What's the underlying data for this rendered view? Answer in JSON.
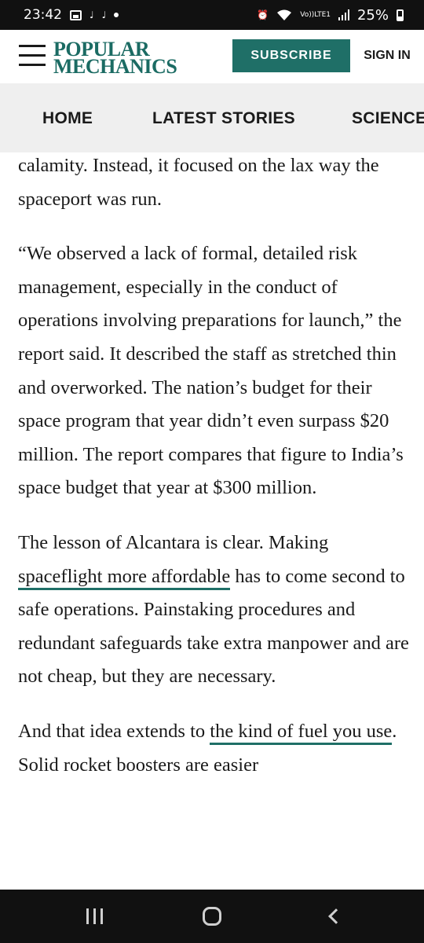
{
  "status_bar": {
    "time": "23:42",
    "volte_line1": "Vo))",
    "volte_line2": "LTE1",
    "battery": "25%"
  },
  "header": {
    "logo_line1": "POPULAR",
    "logo_line2": "MECHANICS",
    "subscribe_label": "SUBSCRIBE",
    "signin_label": "SIGN IN",
    "brand_color": "#1f6f67"
  },
  "nav": {
    "items": [
      {
        "label": "HOME"
      },
      {
        "label": "LATEST STORIES"
      },
      {
        "label": "SCIENCE"
      }
    ]
  },
  "article": {
    "p1": "calamity. Instead, it focused on the lax way the spaceport was run.",
    "p2": "“We observed a lack of formal, detailed risk management, especially in the conduct of operations involving preparations for launch,” the report said. It described the staff as stretched thin and overworked. The nation’s budget for their space program that year didn’t even surpass $20 million. The report compares that figure to India’s space budget that year at $300 million.",
    "p3_before": "The lesson of Alcantara is clear. Making ",
    "p3_link": "spaceflight more affordable",
    "p3_after": " has to come second to safe operations. Painstaking procedures and redundant safeguards take extra manpower and are not cheap, but they are necessary.",
    "p4_before": "And that idea extends to ",
    "p4_link": "the kind of fuel you use",
    "p4_after": ". Solid rocket boosters are easier"
  },
  "system_nav": {
    "icons": [
      "recent-apps-icon",
      "home-icon",
      "back-icon"
    ]
  }
}
